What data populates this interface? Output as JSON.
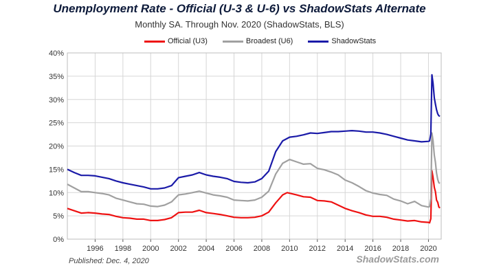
{
  "header": {
    "title": "Unemployment Rate - Official (U-3 & U-6) vs ShadowStats Alternate",
    "subtitle": "Monthly SA. Through Nov. 2020  (ShadowStats, BLS)"
  },
  "footer": {
    "published": "Published: Dec. 4, 2020",
    "brand": "ShadowStats.com"
  },
  "chart_data": {
    "type": "line",
    "x_unit": "year",
    "xlim": [
      1994,
      2020.917
    ],
    "ylim": [
      0,
      40
    ],
    "y_ticks": [
      0,
      5,
      10,
      15,
      20,
      25,
      30,
      35,
      40
    ],
    "y_tick_labels": [
      "0%",
      "5%",
      "10%",
      "15%",
      "20%",
      "25%",
      "30%",
      "35%",
      "40%"
    ],
    "x_ticks": [
      1996,
      1998,
      2000,
      2002,
      2004,
      2006,
      2008,
      2010,
      2012,
      2014,
      2016,
      2018,
      2020
    ],
    "x_tick_labels": [
      "1996",
      "1998",
      "2000",
      "2002",
      "2004",
      "2006",
      "2008",
      "2010",
      "2012",
      "2014",
      "2016",
      "2018",
      "2020"
    ],
    "grid": true,
    "legend_position": "top",
    "series": [
      {
        "name": "Official (U3)",
        "color": "#ee1111",
        "points": [
          [
            1994.0,
            6.6
          ],
          [
            1994.5,
            6.1
          ],
          [
            1995.0,
            5.6
          ],
          [
            1995.5,
            5.7
          ],
          [
            1996.0,
            5.6
          ],
          [
            1996.5,
            5.4
          ],
          [
            1997.0,
            5.3
          ],
          [
            1997.5,
            4.9
          ],
          [
            1998.0,
            4.6
          ],
          [
            1998.5,
            4.5
          ],
          [
            1999.0,
            4.3
          ],
          [
            1999.5,
            4.3
          ],
          [
            2000.0,
            4.0
          ],
          [
            2000.5,
            4.0
          ],
          [
            2001.0,
            4.2
          ],
          [
            2001.5,
            4.6
          ],
          [
            2002.0,
            5.7
          ],
          [
            2002.5,
            5.8
          ],
          [
            2003.0,
            5.8
          ],
          [
            2003.5,
            6.2
          ],
          [
            2004.0,
            5.7
          ],
          [
            2004.5,
            5.5
          ],
          [
            2005.0,
            5.3
          ],
          [
            2005.5,
            5.0
          ],
          [
            2006.0,
            4.7
          ],
          [
            2006.5,
            4.6
          ],
          [
            2007.0,
            4.6
          ],
          [
            2007.5,
            4.7
          ],
          [
            2008.0,
            5.0
          ],
          [
            2008.5,
            5.8
          ],
          [
            2009.0,
            7.8
          ],
          [
            2009.5,
            9.5
          ],
          [
            2009.83,
            10.0
          ],
          [
            2010.5,
            9.5
          ],
          [
            2011.0,
            9.1
          ],
          [
            2011.5,
            9.0
          ],
          [
            2012.0,
            8.3
          ],
          [
            2012.5,
            8.2
          ],
          [
            2013.0,
            8.0
          ],
          [
            2013.5,
            7.3
          ],
          [
            2014.0,
            6.6
          ],
          [
            2014.5,
            6.1
          ],
          [
            2015.0,
            5.7
          ],
          [
            2015.5,
            5.2
          ],
          [
            2016.0,
            4.9
          ],
          [
            2016.5,
            4.9
          ],
          [
            2017.0,
            4.7
          ],
          [
            2017.5,
            4.3
          ],
          [
            2018.0,
            4.1
          ],
          [
            2018.5,
            3.9
          ],
          [
            2019.0,
            4.0
          ],
          [
            2019.5,
            3.7
          ],
          [
            2020.0,
            3.6
          ],
          [
            2020.08,
            3.5
          ],
          [
            2020.17,
            4.4
          ],
          [
            2020.25,
            14.7
          ],
          [
            2020.33,
            13.3
          ],
          [
            2020.42,
            11.1
          ],
          [
            2020.5,
            10.2
          ],
          [
            2020.58,
            8.4
          ],
          [
            2020.67,
            7.9
          ],
          [
            2020.75,
            6.9
          ],
          [
            2020.83,
            6.7
          ]
        ]
      },
      {
        "name": "Broadest (U6)",
        "color": "#a0a0a0",
        "points": [
          [
            1994.0,
            11.8
          ],
          [
            1994.5,
            11.0
          ],
          [
            1995.0,
            10.2
          ],
          [
            1995.5,
            10.2
          ],
          [
            1996.0,
            10.0
          ],
          [
            1996.5,
            9.8
          ],
          [
            1997.0,
            9.5
          ],
          [
            1997.5,
            8.8
          ],
          [
            1998.0,
            8.4
          ],
          [
            1998.5,
            8.0
          ],
          [
            1999.0,
            7.6
          ],
          [
            1999.5,
            7.5
          ],
          [
            2000.0,
            7.1
          ],
          [
            2000.5,
            7.0
          ],
          [
            2001.0,
            7.3
          ],
          [
            2001.5,
            8.0
          ],
          [
            2002.0,
            9.5
          ],
          [
            2002.5,
            9.7
          ],
          [
            2003.0,
            10.0
          ],
          [
            2003.5,
            10.3
          ],
          [
            2004.0,
            9.9
          ],
          [
            2004.5,
            9.5
          ],
          [
            2005.0,
            9.3
          ],
          [
            2005.5,
            9.0
          ],
          [
            2006.0,
            8.4
          ],
          [
            2006.5,
            8.3
          ],
          [
            2007.0,
            8.2
          ],
          [
            2007.5,
            8.4
          ],
          [
            2008.0,
            9.0
          ],
          [
            2008.5,
            10.3
          ],
          [
            2009.0,
            14.0
          ],
          [
            2009.5,
            16.3
          ],
          [
            2010.0,
            17.1
          ],
          [
            2010.5,
            16.6
          ],
          [
            2011.0,
            16.1
          ],
          [
            2011.5,
            16.2
          ],
          [
            2012.0,
            15.2
          ],
          [
            2012.5,
            14.9
          ],
          [
            2013.0,
            14.4
          ],
          [
            2013.5,
            13.8
          ],
          [
            2014.0,
            12.7
          ],
          [
            2014.5,
            12.1
          ],
          [
            2015.0,
            11.3
          ],
          [
            2015.5,
            10.4
          ],
          [
            2016.0,
            9.9
          ],
          [
            2016.5,
            9.6
          ],
          [
            2017.0,
            9.4
          ],
          [
            2017.5,
            8.6
          ],
          [
            2018.0,
            8.2
          ],
          [
            2018.5,
            7.6
          ],
          [
            2019.0,
            8.1
          ],
          [
            2019.5,
            7.2
          ],
          [
            2020.0,
            6.9
          ],
          [
            2020.08,
            7.0
          ],
          [
            2020.17,
            8.7
          ],
          [
            2020.25,
            22.8
          ],
          [
            2020.33,
            21.2
          ],
          [
            2020.42,
            18.0
          ],
          [
            2020.5,
            16.5
          ],
          [
            2020.58,
            14.2
          ],
          [
            2020.67,
            12.8
          ],
          [
            2020.75,
            12.1
          ],
          [
            2020.83,
            12.0
          ]
        ]
      },
      {
        "name": "ShadowStats",
        "color": "#1a1aa8",
        "points": [
          [
            1994.0,
            15.0
          ],
          [
            1994.5,
            14.3
          ],
          [
            1995.0,
            13.7
          ],
          [
            1995.5,
            13.7
          ],
          [
            1996.0,
            13.6
          ],
          [
            1996.5,
            13.3
          ],
          [
            1997.0,
            13.0
          ],
          [
            1997.5,
            12.5
          ],
          [
            1998.0,
            12.1
          ],
          [
            1998.5,
            11.8
          ],
          [
            1999.0,
            11.5
          ],
          [
            1999.5,
            11.2
          ],
          [
            2000.0,
            10.8
          ],
          [
            2000.5,
            10.8
          ],
          [
            2001.0,
            11.0
          ],
          [
            2001.5,
            11.5
          ],
          [
            2002.0,
            13.2
          ],
          [
            2002.5,
            13.5
          ],
          [
            2003.0,
            13.8
          ],
          [
            2003.5,
            14.3
          ],
          [
            2004.0,
            13.8
          ],
          [
            2004.5,
            13.5
          ],
          [
            2005.0,
            13.3
          ],
          [
            2005.5,
            13.0
          ],
          [
            2006.0,
            12.4
          ],
          [
            2006.5,
            12.2
          ],
          [
            2007.0,
            12.1
          ],
          [
            2007.5,
            12.3
          ],
          [
            2008.0,
            13.0
          ],
          [
            2008.5,
            14.6
          ],
          [
            2009.0,
            18.8
          ],
          [
            2009.5,
            21.1
          ],
          [
            2010.0,
            21.9
          ],
          [
            2010.5,
            22.1
          ],
          [
            2011.0,
            22.4
          ],
          [
            2011.5,
            22.8
          ],
          [
            2012.0,
            22.7
          ],
          [
            2012.5,
            22.9
          ],
          [
            2013.0,
            23.1
          ],
          [
            2013.5,
            23.1
          ],
          [
            2014.0,
            23.2
          ],
          [
            2014.5,
            23.3
          ],
          [
            2015.0,
            23.2
          ],
          [
            2015.5,
            23.0
          ],
          [
            2016.0,
            23.0
          ],
          [
            2016.5,
            22.8
          ],
          [
            2017.0,
            22.5
          ],
          [
            2017.5,
            22.1
          ],
          [
            2018.0,
            21.7
          ],
          [
            2018.5,
            21.3
          ],
          [
            2019.0,
            21.1
          ],
          [
            2019.5,
            20.9
          ],
          [
            2020.0,
            21.0
          ],
          [
            2020.08,
            21.1
          ],
          [
            2020.17,
            22.6
          ],
          [
            2020.25,
            35.3
          ],
          [
            2020.33,
            33.5
          ],
          [
            2020.42,
            30.3
          ],
          [
            2020.5,
            29.0
          ],
          [
            2020.58,
            27.8
          ],
          [
            2020.67,
            26.9
          ],
          [
            2020.75,
            26.5
          ],
          [
            2020.83,
            26.4
          ]
        ]
      }
    ]
  }
}
